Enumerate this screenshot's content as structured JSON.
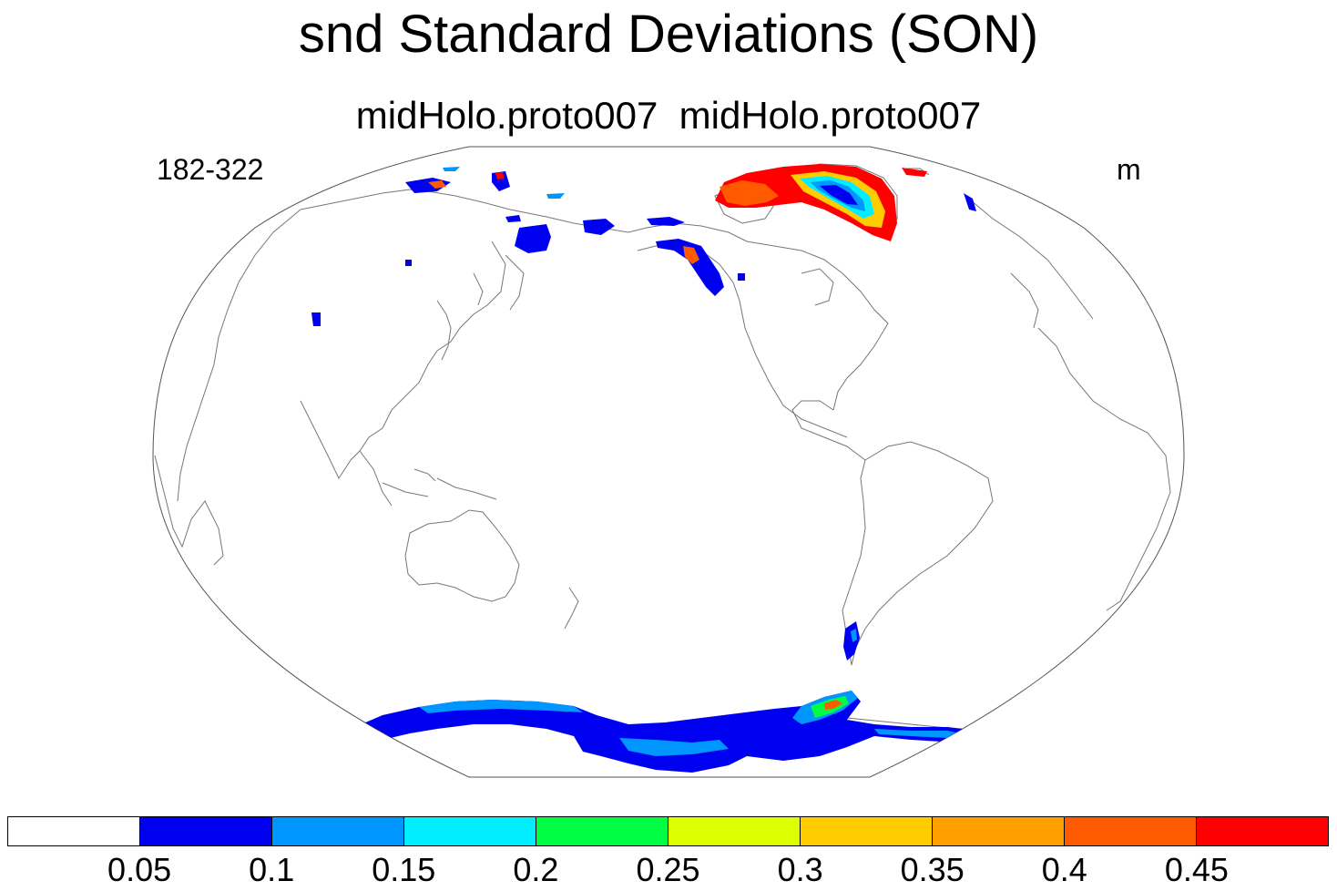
{
  "title": "snd Standard Deviations (SON)",
  "subtitle": "midHolo.proto007  midHolo.proto007",
  "left_label": "182-322",
  "right_label": "m",
  "colorbar": {
    "colors": [
      "#ffffff",
      "#0000f0",
      "#0096ff",
      "#00eeff",
      "#00ff44",
      "#ddff00",
      "#ffcc00",
      "#ffa000",
      "#ff5a00",
      "#ff0000"
    ],
    "labels": [
      "0.05",
      "0.1",
      "0.15",
      "0.2",
      "0.25",
      "0.3",
      "0.35",
      "0.4",
      "0.45"
    ]
  }
}
